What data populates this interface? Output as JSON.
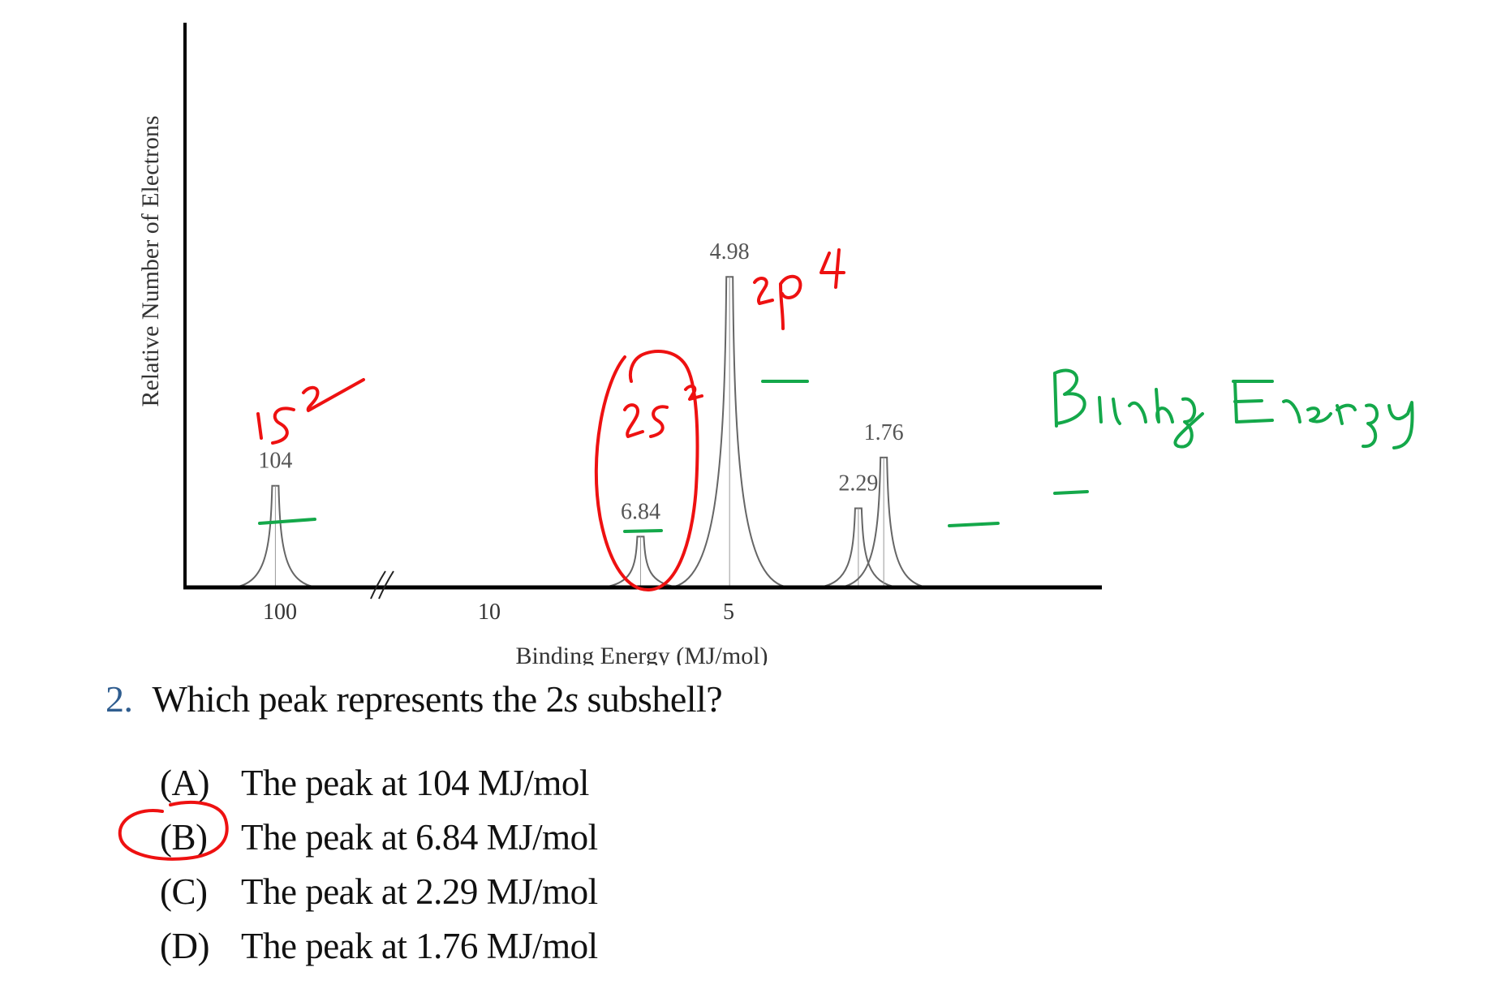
{
  "chart_data": {
    "type": "line",
    "ylabel": "Relative Number of Electrons",
    "xlabel": "Binding Energy (MJ/mol)",
    "x_ticks": [
      "100",
      "10",
      "5"
    ],
    "x_reversed": true,
    "axis_break": true,
    "peaks": [
      {
        "label": "104",
        "x": 104,
        "height": 0.18
      },
      {
        "label": "6.84",
        "x": 6.84,
        "height": 0.09
      },
      {
        "label": "4.98",
        "x": 4.98,
        "height": 0.55
      },
      {
        "label": "2.29",
        "x": 2.29,
        "height": 0.14
      },
      {
        "label": "1.76",
        "x": 1.76,
        "height": 0.23
      }
    ],
    "colors": {
      "axis": "#000000",
      "peak": "#666666",
      "label": "#555555"
    }
  },
  "question": {
    "number": "2.",
    "text_before": "Which peak represents the 2",
    "italic": "s",
    "text_after": " subshell?"
  },
  "options": [
    {
      "letter": "(A)",
      "text": "The peak at 104 MJ/mol"
    },
    {
      "letter": "(B)",
      "text": "The peak at 6.84 MJ/mol"
    },
    {
      "letter": "(C)",
      "text": "The peak at 2.29 MJ/mol"
    },
    {
      "letter": "(D)",
      "text": "The peak at 1.76 MJ/mol"
    }
  ],
  "annotations": {
    "red_texts": [
      "1s²",
      "2s²",
      "2p⁴"
    ],
    "green_text": "Binding Energy",
    "red_color": "#ee1111",
    "green_color": "#14a84a",
    "circled_option": "(B)"
  }
}
